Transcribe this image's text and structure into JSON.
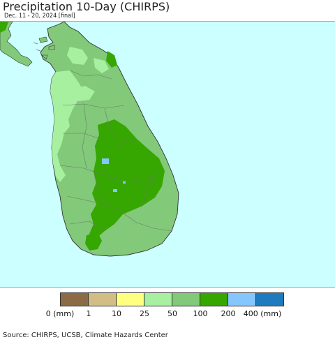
{
  "header": {
    "title": "Precipitation 10-Day (CHIRPS)",
    "subtitle": "Dec. 11 - 20, 2024 [final]"
  },
  "map": {
    "region": "Sri Lanka",
    "colors": {
      "ocean": "#ccffff",
      "c50_100": "#82c97a",
      "c25_50": "#a6f0a0",
      "c100_200": "#36a600",
      "c200_400": "#85c6ff",
      "boundary": "#6b7a6b"
    }
  },
  "legend": {
    "swatches": [
      "#8b6b45",
      "#d2be85",
      "#ffff80",
      "#a6f0a0",
      "#82c97a",
      "#36a600",
      "#85c6ff",
      "#1f7bbf"
    ],
    "labels": [
      "0 (mm)",
      "1",
      "10",
      "25",
      "50",
      "100",
      "200",
      "400 (mm)"
    ]
  },
  "footer": {
    "source": "Source: CHIRPS, UCSB, Climate Hazards Center"
  }
}
